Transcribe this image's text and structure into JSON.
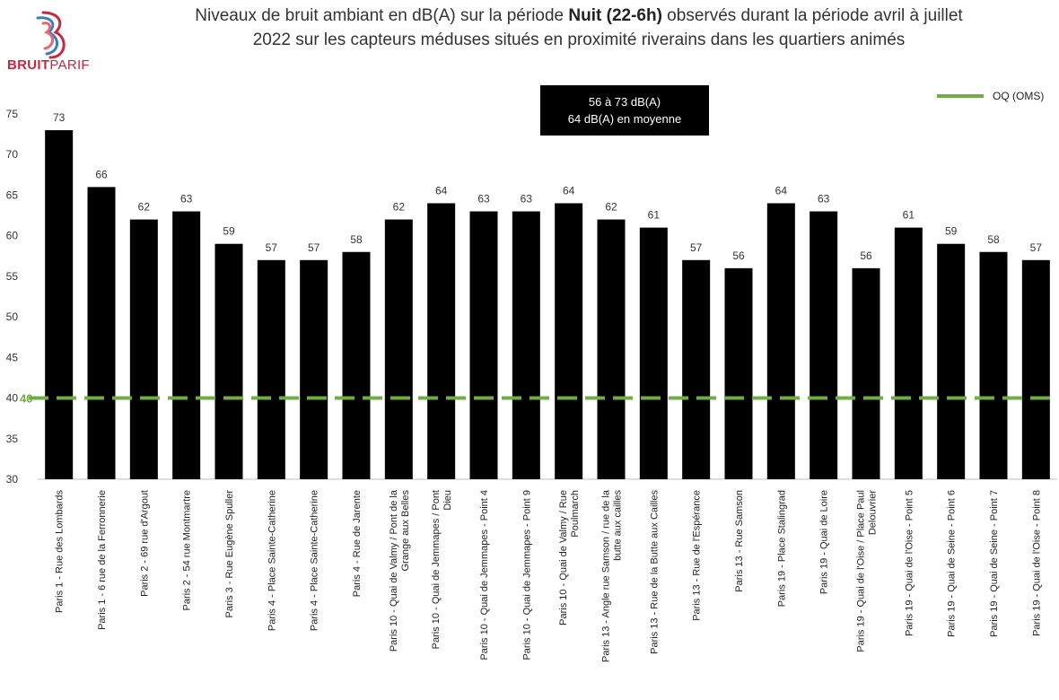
{
  "logo": {
    "brand_bold": "BRUIT",
    "brand_regular": "PARIF"
  },
  "header": {
    "title_line1_pre": "Niveaux de bruit ambiant en dB(A) sur la période ",
    "title_line1_bold": "Nuit (22-6h)",
    "title_line1_post": " observés durant la période avril à juillet",
    "title_line2": "2022 sur les capteurs méduses situés en proximité riverains dans les quartiers animés"
  },
  "summary": {
    "line1": "56 à 73 dB(A)",
    "line2": "64 dB(A) en moyenne"
  },
  "legend": {
    "label": "OQ (OMS)"
  },
  "colors": {
    "bar": "#000000",
    "reference": "#70ad47",
    "axis": "#bfbfbf"
  },
  "chart_data": {
    "type": "bar",
    "ylim": [
      30,
      75
    ],
    "yticks": [
      30,
      35,
      40,
      45,
      50,
      55,
      60,
      65,
      70,
      75
    ],
    "grid": false,
    "legend_position": "top-right",
    "reference_line": {
      "name": "OQ (OMS)",
      "value": 40,
      "label": "40"
    },
    "categories": [
      "Paris 1 - Rue des Lombards",
      "Paris 1 - 6 rue de la Ferronnerie",
      "Paris 2 - 69 rue d'Argout",
      "Paris 2 - 54 rue Montmartre",
      "Paris 3 - Rue Eugène Spuller",
      "Paris 4 - Place Sainte-Catherine",
      "Paris 4 - Place Sainte-Catherine",
      "Paris 4 - Rue de Jarente",
      "Paris 10 - Quai de Valmy / Pont de la Grange aux Belles",
      "Paris 10 - Quai de Jemmapes / Pont Dieu",
      "Paris 10 - Quai de Jemmapes - Point 4",
      "Paris 10 - Quai de Jemmapes - Point 9",
      "Paris 10 - Quai de Valmy / Rue Poulmarch",
      "Paris 13 - Angle rue Samson / rue de la butte aux cailles",
      "Paris 13 - Rue de la Butte aux Cailles",
      "Paris 13 - Rue de l'Espérance",
      "Paris 13 - Rue Samson",
      "Paris 19 - Place Stalingrad",
      "Paris 19 - Quai de Loire",
      "Paris 19 - Quai de l'Oise / Place Paul Delouvrier",
      "Paris 19 - Quai de l'Oise - Point 5",
      "Paris 19 - Quai de Seine - Point 6",
      "Paris 19 - Quai de Seine - Point 7",
      "Paris 19 - Quai de l'Oise - Point 8"
    ],
    "category_lines": [
      [
        "Paris 1 - Rue des Lombards"
      ],
      [
        "Paris 1 - 6 rue de la Ferronnerie"
      ],
      [
        "Paris 2 - 69 rue d'Argout"
      ],
      [
        "Paris 2 - 54 rue Montmartre"
      ],
      [
        "Paris 3 - Rue Eugène Spuller"
      ],
      [
        "Paris 4 - Place Sainte-Catherine"
      ],
      [
        "Paris 4 - Place Sainte-Catherine"
      ],
      [
        "Paris 4 - Rue de Jarente"
      ],
      [
        "Paris 10 - Quai de Valmy / Pont de la",
        "Grange aux Belles"
      ],
      [
        "Paris 10 - Quai de Jemmapes / Pont",
        "Dieu"
      ],
      [
        "Paris 10 - Quai de Jemmapes - Point 4"
      ],
      [
        "Paris 10 - Quai de Jemmapes - Point 9"
      ],
      [
        "Paris 10 - Quai de Valmy / Rue",
        "Poulmarch"
      ],
      [
        "Paris 13 - Angle rue Samson / rue de la",
        "butte aux cailles"
      ],
      [
        "Paris 13 - Rue de la Butte aux Cailles"
      ],
      [
        "Paris 13 - Rue de l'Espérance"
      ],
      [
        "Paris 13 - Rue Samson"
      ],
      [
        "Paris 19 - Place Stalingrad"
      ],
      [
        "Paris 19 - Quai de Loire"
      ],
      [
        "Paris 19 - Quai de l'Oise / Place Paul",
        "Delouvrier"
      ],
      [
        "Paris 19 - Quai de l'Oise - Point 5"
      ],
      [
        "Paris 19 - Quai de Seine - Point 6"
      ],
      [
        "Paris 19 - Quai de Seine - Point 7"
      ],
      [
        "Paris 19 - Quai de l'Oise - Point 8"
      ]
    ],
    "values": [
      73,
      66,
      62,
      63,
      59,
      57,
      57,
      58,
      62,
      64,
      63,
      63,
      64,
      62,
      61,
      57,
      56,
      64,
      63,
      56,
      61,
      59,
      58,
      57
    ]
  }
}
